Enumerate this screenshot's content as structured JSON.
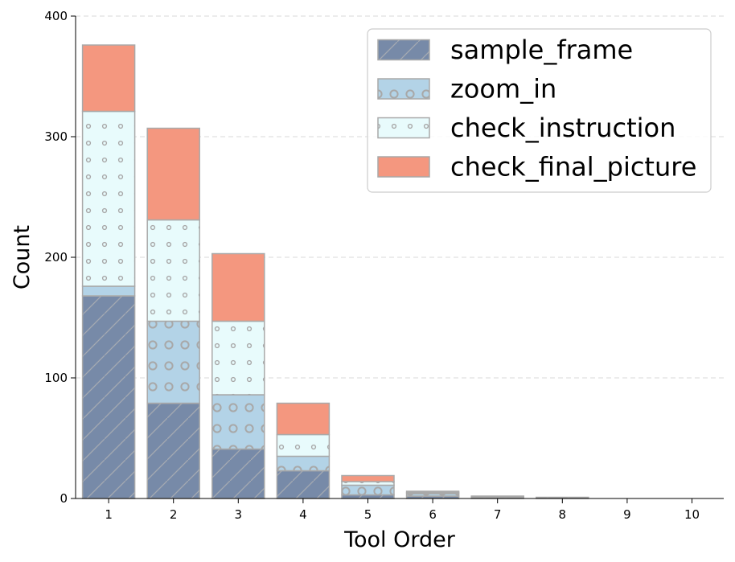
{
  "chart_data": {
    "type": "bar",
    "stacked": true,
    "title": "",
    "xlabel": "Tool Order",
    "ylabel": "Count",
    "ylim": [
      0,
      400
    ],
    "yticks": [
      0,
      100,
      200,
      300,
      400
    ],
    "grid": "horizontal dashed",
    "legend_position": "top-right",
    "categories": [
      "1",
      "2",
      "3",
      "4",
      "5",
      "6",
      "7",
      "8",
      "9",
      "10"
    ],
    "series": [
      {
        "name": "sample_frame",
        "color": "#778AA8",
        "pattern": "diagonal-lines",
        "values": [
          168,
          79,
          41,
          23,
          3,
          2,
          1,
          1,
          0,
          0
        ]
      },
      {
        "name": "zoom_in",
        "color": "#B3D3E7",
        "pattern": "large-circles",
        "values": [
          8,
          68,
          45,
          12,
          8,
          2,
          1,
          0,
          0,
          0
        ]
      },
      {
        "name": "check_instruction",
        "color": "#E8FBFC",
        "pattern": "small-dots",
        "values": [
          145,
          84,
          61,
          18,
          3,
          1,
          0,
          0,
          0,
          0
        ]
      },
      {
        "name": "check_final_picture",
        "color": "#F4977F",
        "pattern": "none",
        "values": [
          55,
          76,
          56,
          26,
          5,
          1,
          0,
          0,
          0,
          0
        ]
      }
    ]
  }
}
